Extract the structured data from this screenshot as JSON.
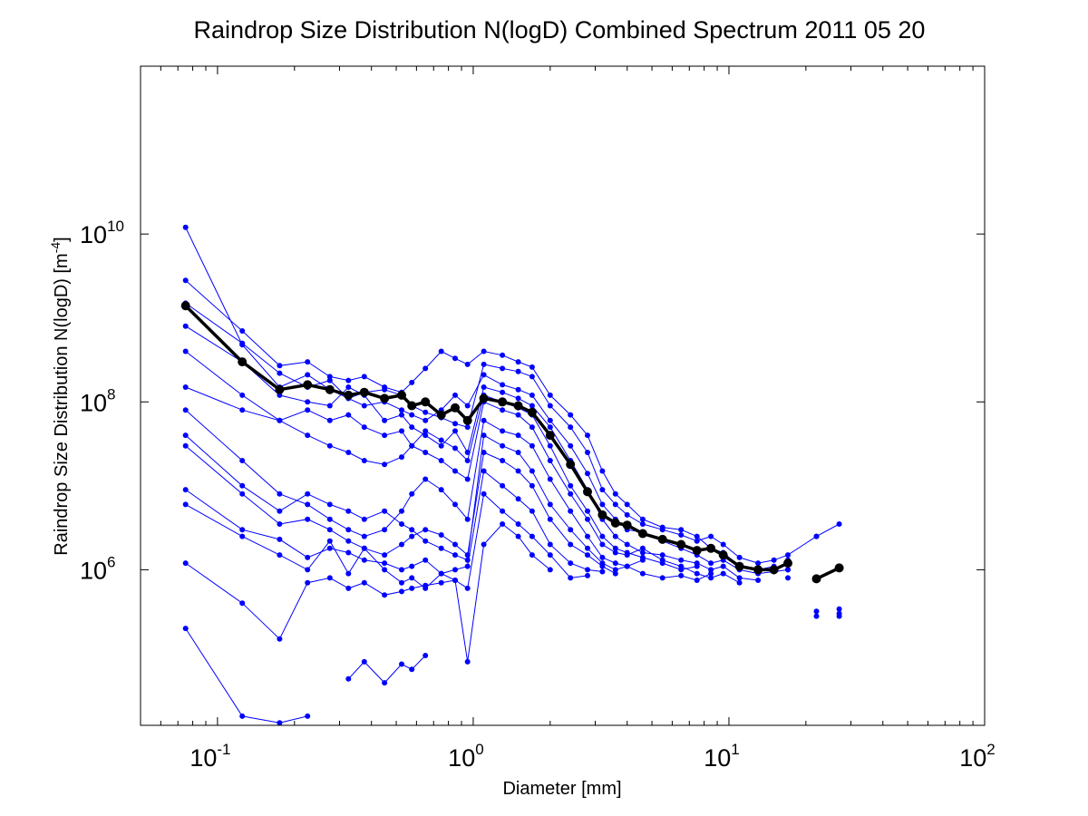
{
  "chart_data": {
    "type": "line",
    "title": "Raindrop Size Distribution N(logD) Combined Spectrum 2011 05 20",
    "xlabel": "Diameter [mm]",
    "ylabel_text": "Raindrop Size Distribution N(logD) [m",
    "ylabel_exp": "-4",
    "ylabel_end": "]",
    "x_scale": "log",
    "y_scale": "log",
    "xlim": [
      0.05,
      100
    ],
    "ylim": [
      14000,
      1000000000000
    ],
    "grid": false,
    "x_ticks": [
      {
        "base": "10",
        "exp": "-1",
        "value": 0.1
      },
      {
        "base": "10",
        "exp": "0",
        "value": 1
      },
      {
        "base": "10",
        "exp": "1",
        "value": 10
      },
      {
        "base": "10",
        "exp": "2",
        "value": 100
      }
    ],
    "y_ticks": [
      {
        "base": "10",
        "exp": "6",
        "value": 1000000
      },
      {
        "base": "10",
        "exp": "8",
        "value": 100000000
      },
      {
        "base": "10",
        "exp": "10",
        "value": 10000000000
      }
    ],
    "series_color": "#0000ff",
    "mean_color": "#000000",
    "series": [
      {
        "x": [
          0.075,
          0.125,
          0.175,
          0.225,
          0.275,
          0.325,
          0.375,
          0.45,
          0.525,
          0.575,
          0.65,
          0.75,
          0.85,
          0.95,
          1.1,
          1.3,
          1.5,
          1.7,
          2.0,
          2.4,
          2.8,
          3.2,
          3.6,
          4.0,
          4.6,
          5.5,
          6.5,
          7.5,
          8.5,
          9.5,
          11,
          13,
          15,
          17,
          22,
          27
        ],
        "y": [
          12000000000,
          480000000,
          150000000,
          210000000,
          140000000,
          110000000,
          130000000,
          140000000,
          120000000,
          90000000,
          75000000,
          65000000,
          55000000,
          50000000,
          280000000,
          250000000,
          230000000,
          200000000,
          90000000,
          50000000,
          25000000,
          9000000,
          6000000,
          4500000,
          3500000,
          3000000,
          2600000,
          2200000,
          2500000,
          2000000,
          1400000,
          1200000,
          1300000,
          1500000,
          2500000,
          3500000
        ]
      },
      {
        "x": [
          0.075,
          0.125,
          0.175,
          0.225,
          0.275,
          0.325,
          0.375,
          0.45,
          0.525,
          0.575,
          0.65,
          0.75,
          0.85,
          0.95,
          1.1,
          1.3,
          1.5,
          1.7,
          2.0,
          2.4,
          2.8,
          3.2,
          3.6,
          4.0,
          4.6,
          5.5,
          6.5,
          7.5,
          8.5,
          9.5,
          11,
          13,
          15
        ],
        "y": [
          2800000000,
          700000000,
          270000000,
          300000000,
          200000000,
          180000000,
          200000000,
          150000000,
          130000000,
          170000000,
          250000000,
          400000000,
          330000000,
          280000000,
          400000000,
          360000000,
          300000000,
          260000000,
          120000000,
          70000000,
          40000000,
          15000000,
          8000000,
          6000000,
          4000000,
          3200000,
          3000000,
          2500000,
          1800000,
          1600000,
          1100000,
          1000000,
          1100000
        ]
      },
      {
        "x": [
          0.075,
          0.125,
          0.175,
          0.225,
          0.275,
          0.325,
          0.375,
          0.45,
          0.525,
          0.575,
          0.65,
          0.75,
          0.85,
          0.95,
          1.1,
          1.3,
          1.5,
          1.7,
          2.0,
          2.4,
          2.8,
          3.2,
          3.6,
          4.0,
          4.6,
          5.5,
          6.5,
          7.5,
          8.5,
          9.5,
          11,
          13,
          15,
          17
        ],
        "y": [
          1500000000,
          500000000,
          220000000,
          150000000,
          180000000,
          110000000,
          90000000,
          100000000,
          80000000,
          70000000,
          60000000,
          80000000,
          120000000,
          90000000,
          210000000,
          160000000,
          140000000,
          120000000,
          60000000,
          30000000,
          14000000,
          6000000,
          4000000,
          3000000,
          2800000,
          2200000,
          1800000,
          1500000,
          1200000,
          1300000,
          1000000,
          900000,
          950000,
          1000000
        ]
      },
      {
        "x": [
          0.075,
          0.125,
          0.175,
          0.225,
          0.275,
          0.325,
          0.375,
          0.45,
          0.525,
          0.575,
          0.65,
          0.75,
          0.85,
          0.95,
          1.1,
          1.3,
          1.5,
          1.7,
          2.0,
          2.4,
          2.8,
          3.2,
          3.6,
          4.0,
          4.6,
          5.5,
          6.5,
          7.5
        ],
        "y": [
          400000000,
          120000000,
          60000000,
          40000000,
          30000000,
          25000000,
          20000000,
          18000000,
          22000000,
          30000000,
          45000000,
          35000000,
          28000000,
          20000000,
          120000000,
          100000000,
          85000000,
          70000000,
          30000000,
          10000000,
          5000000,
          2500000,
          1800000,
          1600000,
          1400000,
          1200000,
          1000000,
          1100000
        ]
      },
      {
        "x": [
          0.075,
          0.125,
          0.175,
          0.225,
          0.275,
          0.325,
          0.375,
          0.45,
          0.525,
          0.575,
          0.65,
          0.75,
          0.85,
          0.95,
          1.1,
          1.3,
          1.5,
          1.7,
          2.0,
          2.4,
          2.8,
          3.2,
          3.6,
          4.0,
          4.6
        ],
        "y": [
          80000000,
          20000000,
          8000000,
          6000000,
          4000000,
          3000000,
          2500000,
          3000000,
          5000000,
          8000000,
          12000000,
          9000000,
          6000000,
          4000000,
          60000000,
          45000000,
          40000000,
          30000000,
          12000000,
          5000000,
          2500000,
          1400000,
          1200000,
          1100000,
          1300000
        ]
      },
      {
        "x": [
          0.075,
          0.125,
          0.175,
          0.225,
          0.275,
          0.325,
          0.375,
          0.45,
          0.525,
          0.575,
          0.65,
          0.75,
          0.85,
          0.95,
          1.1,
          1.3,
          1.5,
          1.7,
          2.0,
          2.4,
          2.8,
          3.2,
          3.6
        ],
        "y": [
          30000000,
          8000000,
          3500000,
          4000000,
          3000000,
          2200000,
          1800000,
          1500000,
          2000000,
          2500000,
          3000000,
          2600000,
          2000000,
          1500000,
          25000000,
          20000000,
          15000000,
          10000000,
          4000000,
          2000000,
          1500000,
          1100000,
          900000
        ]
      },
      {
        "x": [
          0.075,
          0.125,
          0.175,
          0.225,
          0.275,
          0.325,
          0.375,
          0.45,
          0.525,
          0.575,
          0.65,
          0.75,
          0.85,
          0.95,
          1.1,
          1.3,
          1.5,
          1.7,
          2.0,
          2.4,
          2.8
        ],
        "y": [
          9000000,
          3000000,
          2300000,
          1400000,
          1800000,
          1600000,
          1300000,
          1200000,
          1000000,
          1100000,
          1300000,
          900000,
          750000,
          600000,
          8000000,
          5000000,
          3500000,
          2500000,
          1500000,
          800000,
          850000
        ]
      },
      {
        "x": [
          0.075,
          0.125,
          0.175,
          0.225,
          0.275,
          0.325,
          0.375,
          0.45,
          0.525,
          0.575,
          0.65,
          0.75,
          0.85,
          0.95,
          1.1,
          1.3,
          1.5,
          1.7,
          2.0
        ],
        "y": [
          1200000,
          400000,
          150000,
          700000,
          800000,
          600000,
          700000,
          500000,
          550000,
          600000,
          650000,
          700000,
          750000,
          80000,
          2000000,
          3500000,
          2500000,
          1500000,
          1000000
        ]
      },
      {
        "x": [
          0.075,
          0.125,
          0.175,
          0.225
        ],
        "y": [
          200000,
          18000,
          15000,
          18000
        ]
      },
      {
        "x": [
          0.325,
          0.375,
          0.45,
          0.525,
          0.575,
          0.65
        ],
        "y": [
          50000,
          80000,
          45000,
          75000,
          65000,
          95000
        ]
      },
      {
        "x": [
          0.075,
          0.125,
          0.175,
          0.225,
          0.275,
          0.325,
          0.375,
          0.45,
          0.525,
          0.575,
          0.65,
          0.75,
          0.85,
          0.95,
          1.1,
          1.3,
          1.5,
          1.7,
          2.0,
          2.4,
          2.8,
          3.2,
          3.6,
          4.0,
          4.6,
          5.5,
          6.5,
          7.5,
          8.5,
          9.5,
          11
        ],
        "y": [
          150000000,
          80000000,
          60000000,
          80000000,
          60000000,
          70000000,
          50000000,
          40000000,
          45000000,
          30000000,
          25000000,
          20000000,
          15000000,
          12000000,
          100000000,
          80000000,
          70000000,
          50000000,
          20000000,
          8000000,
          4000000,
          2000000,
          1600000,
          1500000,
          1800000,
          1300000,
          1100000,
          900000,
          800000,
          900000,
          700000
        ]
      },
      {
        "x": [
          0.075,
          0.125,
          0.175,
          0.225,
          0.275,
          0.325,
          0.375,
          0.45,
          0.525,
          0.575,
          0.65,
          0.75,
          0.85,
          0.95,
          1.1,
          1.3,
          1.5,
          1.7,
          2.0,
          2.4,
          2.8,
          3.2,
          3.6,
          4.0,
          4.6,
          5.5,
          6.5,
          7.5,
          8.5
        ],
        "y": [
          40000000,
          10000000,
          5000000,
          8000000,
          6000000,
          5000000,
          4000000,
          5000000,
          3500000,
          3000000,
          2200000,
          1800000,
          1500000,
          1300000,
          40000000,
          30000000,
          25000000,
          15000000,
          6000000,
          3000000,
          1800000,
          1200000,
          1000000,
          1100000,
          900000,
          800000,
          850000,
          750000,
          900000
        ]
      },
      {
        "x": [
          0.075,
          0.125,
          0.175,
          0.225,
          0.275,
          0.325,
          0.375,
          0.45,
          0.525,
          0.575,
          0.65,
          0.75,
          0.85,
          0.95,
          1.1,
          1.3,
          1.5,
          1.7,
          2.0,
          2.4,
          2.8,
          3.2
        ],
        "y": [
          6000000,
          2500000,
          1500000,
          1000000,
          2200000,
          900000,
          1800000,
          1000000,
          700000,
          800000,
          600000,
          900000,
          1000000,
          1100000,
          15000000,
          10000000,
          7000000,
          5000000,
          2000000,
          1200000,
          1000000,
          950000
        ]
      },
      {
        "x": [
          0.075,
          0.125,
          0.175,
          0.225,
          0.275,
          0.325,
          0.375,
          0.45,
          0.525,
          0.575,
          0.65,
          0.75,
          0.85,
          0.95,
          1.1,
          1.3,
          1.5,
          1.7,
          2.0,
          2.4,
          2.8,
          3.2,
          3.6,
          4.0,
          4.6,
          5.5,
          6.5,
          7.5,
          8.5,
          9.5,
          11,
          13
        ],
        "y": [
          800000000,
          300000000,
          120000000,
          100000000,
          90000000,
          150000000,
          120000000,
          60000000,
          70000000,
          50000000,
          40000000,
          30000000,
          45000000,
          25000000,
          150000000,
          130000000,
          110000000,
          90000000,
          50000000,
          20000000,
          9000000,
          4000000,
          2500000,
          2000000,
          1600000,
          1500000,
          1300000,
          1200000,
          1000000,
          1100000,
          800000,
          750000
        ]
      }
    ],
    "mean": {
      "x": [
        0.075,
        0.125,
        0.175,
        0.225,
        0.275,
        0.325,
        0.375,
        0.45,
        0.525,
        0.575,
        0.65,
        0.75,
        0.85,
        0.95,
        1.1,
        1.3,
        1.5,
        1.7,
        2.0,
        2.4,
        2.8,
        3.2,
        3.6,
        4.0,
        4.6,
        5.5,
        6.5,
        7.5,
        8.5,
        9.5,
        11,
        13,
        15,
        17
      ],
      "y": [
        1400000000,
        300000000,
        140000000,
        160000000,
        140000000,
        120000000,
        130000000,
        110000000,
        120000000,
        90000000,
        100000000,
        70000000,
        85000000,
        60000000,
        110000000,
        100000000,
        90000000,
        75000000,
        40000000,
        18000000,
        8500000,
        4500000,
        3600000,
        3400000,
        2700000,
        2300000,
        2000000,
        1700000,
        1800000,
        1500000,
        1100000,
        1000000,
        1000000,
        1200000
      ]
    },
    "mean_tail": {
      "x": [
        22,
        27
      ],
      "y": [
        780000,
        1050000
      ]
    },
    "isolated_points": {
      "x": [
        22,
        22,
        22,
        27,
        27,
        27,
        17,
        17,
        17
      ],
      "y": [
        2500000,
        320000,
        280000,
        340000,
        300000,
        280000,
        1000000,
        800000,
        1300000
      ]
    }
  }
}
